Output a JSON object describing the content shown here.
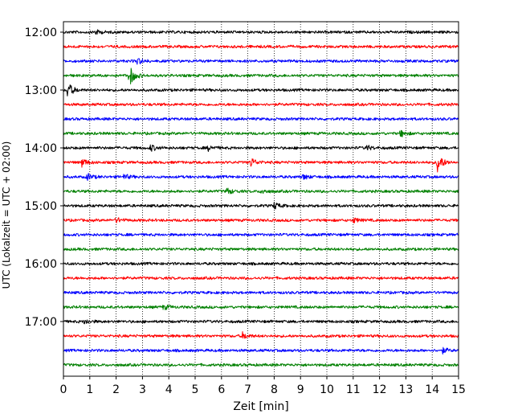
{
  "chart_data": {
    "type": "line",
    "title": "",
    "xlabel": "Zeit  [min]",
    "ylabel": "UTC (Lokalzeit = UTC + 02:00)",
    "xlim": [
      0,
      15
    ],
    "xticks": [
      0,
      1,
      2,
      3,
      4,
      5,
      6,
      7,
      8,
      9,
      10,
      11,
      12,
      13,
      14,
      15
    ],
    "x_grid": "dotted",
    "yticks": [
      {
        "label": "12:00",
        "row": 0
      },
      {
        "label": "13:00",
        "row": 4
      },
      {
        "label": "14:00",
        "row": 8
      },
      {
        "label": "15:00",
        "row": 12
      },
      {
        "label": "16:00",
        "row": 16
      },
      {
        "label": "17:00",
        "row": 20
      }
    ],
    "color_cycle": [
      "#000000",
      "#ff0000",
      "#0000ff",
      "#008000"
    ],
    "row_minutes": 15,
    "series": [
      {
        "start": "12:00",
        "color": "#000000",
        "events": [
          {
            "t": 1.2,
            "a": 3
          }
        ]
      },
      {
        "start": "12:15",
        "color": "#ff0000",
        "events": []
      },
      {
        "start": "12:30",
        "color": "#0000ff",
        "events": [
          {
            "t": 2.8,
            "a": 4
          }
        ]
      },
      {
        "start": "12:45",
        "color": "#008000",
        "events": [
          {
            "t": 2.5,
            "a": 13
          }
        ]
      },
      {
        "start": "13:00",
        "color": "#000000",
        "events": [
          {
            "t": 0.15,
            "a": 10
          }
        ]
      },
      {
        "start": "13:15",
        "color": "#ff0000",
        "events": []
      },
      {
        "start": "13:30",
        "color": "#0000ff",
        "events": []
      },
      {
        "start": "13:45",
        "color": "#008000",
        "events": [
          {
            "t": 12.8,
            "a": 4
          }
        ]
      },
      {
        "start": "14:00",
        "color": "#000000",
        "events": [
          {
            "t": 3.3,
            "a": 4
          },
          {
            "t": 5.5,
            "a": 3
          },
          {
            "t": 11.5,
            "a": 3
          }
        ]
      },
      {
        "start": "14:15",
        "color": "#ff0000",
        "events": [
          {
            "t": 0.7,
            "a": 5
          },
          {
            "t": 7.1,
            "a": 6
          },
          {
            "t": 14.2,
            "a": 12
          }
        ]
      },
      {
        "start": "14:30",
        "color": "#0000ff",
        "events": [
          {
            "t": 0.9,
            "a": 4
          },
          {
            "t": 2.3,
            "a": 3
          },
          {
            "t": 9.1,
            "a": 3
          }
        ]
      },
      {
        "start": "14:45",
        "color": "#008000",
        "events": [
          {
            "t": 6.2,
            "a": 4
          },
          {
            "t": 7.5,
            "a": 3
          }
        ]
      },
      {
        "start": "15:00",
        "color": "#000000",
        "events": [
          {
            "t": 8.0,
            "a": 4
          }
        ]
      },
      {
        "start": "15:15",
        "color": "#ff0000",
        "events": [
          {
            "t": 2.0,
            "a": 3
          },
          {
            "t": 11.0,
            "a": 3
          }
        ]
      },
      {
        "start": "15:30",
        "color": "#0000ff",
        "events": []
      },
      {
        "start": "15:45",
        "color": "#008000",
        "events": []
      },
      {
        "start": "16:00",
        "color": "#000000",
        "events": []
      },
      {
        "start": "16:15",
        "color": "#ff0000",
        "events": []
      },
      {
        "start": "16:30",
        "color": "#0000ff",
        "events": []
      },
      {
        "start": "16:45",
        "color": "#008000",
        "events": [
          {
            "t": 3.8,
            "a": 3
          }
        ]
      },
      {
        "start": "17:00",
        "color": "#000000",
        "events": [
          {
            "t": 0.8,
            "a": 3
          }
        ]
      },
      {
        "start": "17:15",
        "color": "#ff0000",
        "events": [
          {
            "t": 6.8,
            "a": 4
          }
        ]
      },
      {
        "start": "17:30",
        "color": "#0000ff",
        "events": [
          {
            "t": 14.4,
            "a": 3
          }
        ]
      },
      {
        "start": "17:45",
        "color": "#008000",
        "events": []
      }
    ]
  }
}
